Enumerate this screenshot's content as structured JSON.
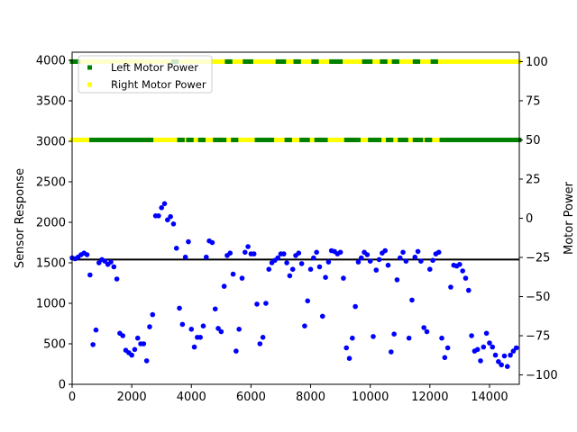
{
  "chart_data": {
    "type": "scatter",
    "title": "",
    "xlabel": "",
    "ylabel": "Sensor Response",
    "y2label": "Motor Power",
    "xlim": [
      0,
      15000
    ],
    "ylim": [
      0,
      4100
    ],
    "y2lim": [
      -106,
      106
    ],
    "x_ticks": [
      0,
      2000,
      4000,
      6000,
      8000,
      10000,
      12000,
      14000
    ],
    "x_tick_labels": [
      "0",
      "2000",
      "4000",
      "6000",
      "8000",
      "10000",
      "12000",
      "14000"
    ],
    "y_ticks": [
      0,
      500,
      1000,
      1500,
      2000,
      2500,
      3000,
      3500,
      4000
    ],
    "y_tick_labels": [
      "0",
      "500",
      "1000",
      "1500",
      "2000",
      "2500",
      "3000",
      "3500",
      "4000"
    ],
    "y2_ticks": [
      100,
      75,
      50,
      25,
      0,
      -25,
      -50,
      -75,
      -100
    ],
    "y2_tick_labels": [
      "100",
      "75",
      "50",
      "25",
      "0",
      "−25",
      "−50",
      "−75",
      "−100"
    ],
    "grid": false,
    "legend_position": "top-left",
    "legend": [
      {
        "label": "Left Motor Power",
        "color": "#008000"
      },
      {
        "label": "Right Motor Power",
        "color": "#ffff00"
      }
    ],
    "threshold_line": {
      "y": 1540,
      "color": "#000000"
    },
    "sensor_series": {
      "color": "#0000ff",
      "points": [
        [
          0,
          1560
        ],
        [
          100,
          1550
        ],
        [
          200,
          1570
        ],
        [
          300,
          1600
        ],
        [
          400,
          1620
        ],
        [
          500,
          1600
        ],
        [
          600,
          1350
        ],
        [
          700,
          490
        ],
        [
          800,
          670
        ],
        [
          900,
          1500
        ],
        [
          1000,
          1540
        ],
        [
          1100,
          1520
        ],
        [
          1200,
          1480
        ],
        [
          1300,
          1510
        ],
        [
          1400,
          1450
        ],
        [
          1500,
          1300
        ],
        [
          1600,
          630
        ],
        [
          1700,
          600
        ],
        [
          1800,
          420
        ],
        [
          1900,
          390
        ],
        [
          2000,
          360
        ],
        [
          2100,
          430
        ],
        [
          2200,
          570
        ],
        [
          2300,
          500
        ],
        [
          2400,
          500
        ],
        [
          2500,
          290
        ],
        [
          2600,
          710
        ],
        [
          2700,
          860
        ],
        [
          2800,
          2080
        ],
        [
          2900,
          2080
        ],
        [
          3000,
          2180
        ],
        [
          3100,
          2230
        ],
        [
          3200,
          2030
        ],
        [
          3300,
          2070
        ],
        [
          3400,
          1980
        ],
        [
          3500,
          1680
        ],
        [
          3600,
          940
        ],
        [
          3700,
          740
        ],
        [
          3800,
          1570
        ],
        [
          3900,
          1760
        ],
        [
          4000,
          680
        ],
        [
          4100,
          460
        ],
        [
          4200,
          580
        ],
        [
          4300,
          580
        ],
        [
          4400,
          720
        ],
        [
          4500,
          1570
        ],
        [
          4600,
          1770
        ],
        [
          4700,
          1750
        ],
        [
          4800,
          930
        ],
        [
          4900,
          690
        ],
        [
          5000,
          650
        ],
        [
          5100,
          1210
        ],
        [
          5200,
          1590
        ],
        [
          5300,
          1620
        ],
        [
          5400,
          1360
        ],
        [
          5500,
          410
        ],
        [
          5600,
          680
        ],
        [
          5700,
          1310
        ],
        [
          5800,
          1630
        ],
        [
          5900,
          1700
        ],
        [
          6000,
          1610
        ],
        [
          6100,
          1610
        ],
        [
          6200,
          990
        ],
        [
          6300,
          500
        ],
        [
          6400,
          580
        ],
        [
          6500,
          1000
        ],
        [
          6600,
          1420
        ],
        [
          6700,
          1500
        ],
        [
          6800,
          1530
        ],
        [
          6900,
          1560
        ],
        [
          7000,
          1610
        ],
        [
          7100,
          1610
        ],
        [
          7200,
          1500
        ],
        [
          7300,
          1340
        ],
        [
          7400,
          1420
        ],
        [
          7500,
          1590
        ],
        [
          7600,
          1620
        ],
        [
          7700,
          1490
        ],
        [
          7800,
          720
        ],
        [
          7900,
          1030
        ],
        [
          8000,
          1420
        ],
        [
          8100,
          1560
        ],
        [
          8200,
          1630
        ],
        [
          8300,
          1450
        ],
        [
          8400,
          840
        ],
        [
          8500,
          1320
        ],
        [
          8600,
          1510
        ],
        [
          8700,
          1650
        ],
        [
          8800,
          1640
        ],
        [
          8900,
          1610
        ],
        [
          9000,
          1630
        ],
        [
          9100,
          1310
        ],
        [
          9200,
          450
        ],
        [
          9300,
          320
        ],
        [
          9400,
          570
        ],
        [
          9500,
          960
        ],
        [
          9600,
          1510
        ],
        [
          9700,
          1560
        ],
        [
          9800,
          1630
        ],
        [
          9900,
          1600
        ],
        [
          10000,
          1520
        ],
        [
          10100,
          590
        ],
        [
          10200,
          1410
        ],
        [
          10300,
          1540
        ],
        [
          10400,
          1620
        ],
        [
          10500,
          1650
        ],
        [
          10600,
          1470
        ],
        [
          10700,
          400
        ],
        [
          10800,
          620
        ],
        [
          10900,
          1290
        ],
        [
          11000,
          1560
        ],
        [
          11100,
          1630
        ],
        [
          11200,
          1520
        ],
        [
          11300,
          570
        ],
        [
          11400,
          1040
        ],
        [
          11500,
          1570
        ],
        [
          11600,
          1640
        ],
        [
          11700,
          1520
        ],
        [
          11800,
          700
        ],
        [
          11900,
          650
        ],
        [
          12000,
          1420
        ],
        [
          12100,
          1530
        ],
        [
          12200,
          1610
        ],
        [
          12300,
          1630
        ],
        [
          12400,
          570
        ],
        [
          12500,
          330
        ],
        [
          12600,
          450
        ],
        [
          12700,
          1200
        ],
        [
          12800,
          1470
        ],
        [
          12900,
          1460
        ],
        [
          13000,
          1480
        ],
        [
          13100,
          1400
        ],
        [
          13200,
          1310
        ],
        [
          13300,
          1160
        ],
        [
          13400,
          600
        ],
        [
          13500,
          410
        ],
        [
          13600,
          430
        ],
        [
          13700,
          290
        ],
        [
          13800,
          460
        ],
        [
          13900,
          630
        ],
        [
          14000,
          510
        ],
        [
          14100,
          460
        ],
        [
          14200,
          360
        ],
        [
          14300,
          280
        ],
        [
          14400,
          240
        ],
        [
          14500,
          350
        ],
        [
          14600,
          220
        ],
        [
          14700,
          360
        ],
        [
          14800,
          410
        ],
        [
          14900,
          450
        ]
      ]
    },
    "motor_power_series": {
      "note_levels": "Left/Right motor power plotted as dense markers on secondary axis",
      "left": {
        "name": "Left Motor Power",
        "color": "#008000",
        "segments": [
          {
            "level": 100,
            "ranges": [
              [
                0,
                250
              ],
              [
                3400,
                3500
              ],
              [
                5200,
                5300
              ],
              [
                5800,
                6000
              ],
              [
                6900,
                7100
              ],
              [
                7500,
                7600
              ],
              [
                8100,
                8200
              ],
              [
                8700,
                9000
              ],
              [
                9800,
                10000
              ],
              [
                10400,
                10500
              ],
              [
                10800,
                10900
              ],
              [
                11500,
                11600
              ],
              [
                12100,
                12200
              ]
            ]
          },
          {
            "level": 50,
            "ranges": [
              [
                650,
                2700
              ],
              [
                3600,
                3700
              ],
              [
                3900,
                4000
              ],
              [
                4300,
                4400
              ],
              [
                4800,
                5100
              ],
              [
                5400,
                5500
              ],
              [
                6200,
                6700
              ],
              [
                7200,
                7300
              ],
              [
                7700,
                7900
              ],
              [
                8200,
                8500
              ],
              [
                9200,
                9600
              ],
              [
                10000,
                10300
              ],
              [
                10600,
                10700
              ],
              [
                11000,
                11200
              ],
              [
                11500,
                11700
              ],
              [
                11900,
                12000
              ],
              [
                12400,
                15000
              ]
            ]
          }
        ]
      },
      "right": {
        "name": "Right Motor Power",
        "color": "#ffff00",
        "segments": [
          {
            "level": 100,
            "ranges": [
              [
                0,
                15000
              ]
            ]
          },
          {
            "level": 50,
            "ranges": [
              [
                0,
                15000
              ]
            ]
          }
        ]
      }
    }
  }
}
